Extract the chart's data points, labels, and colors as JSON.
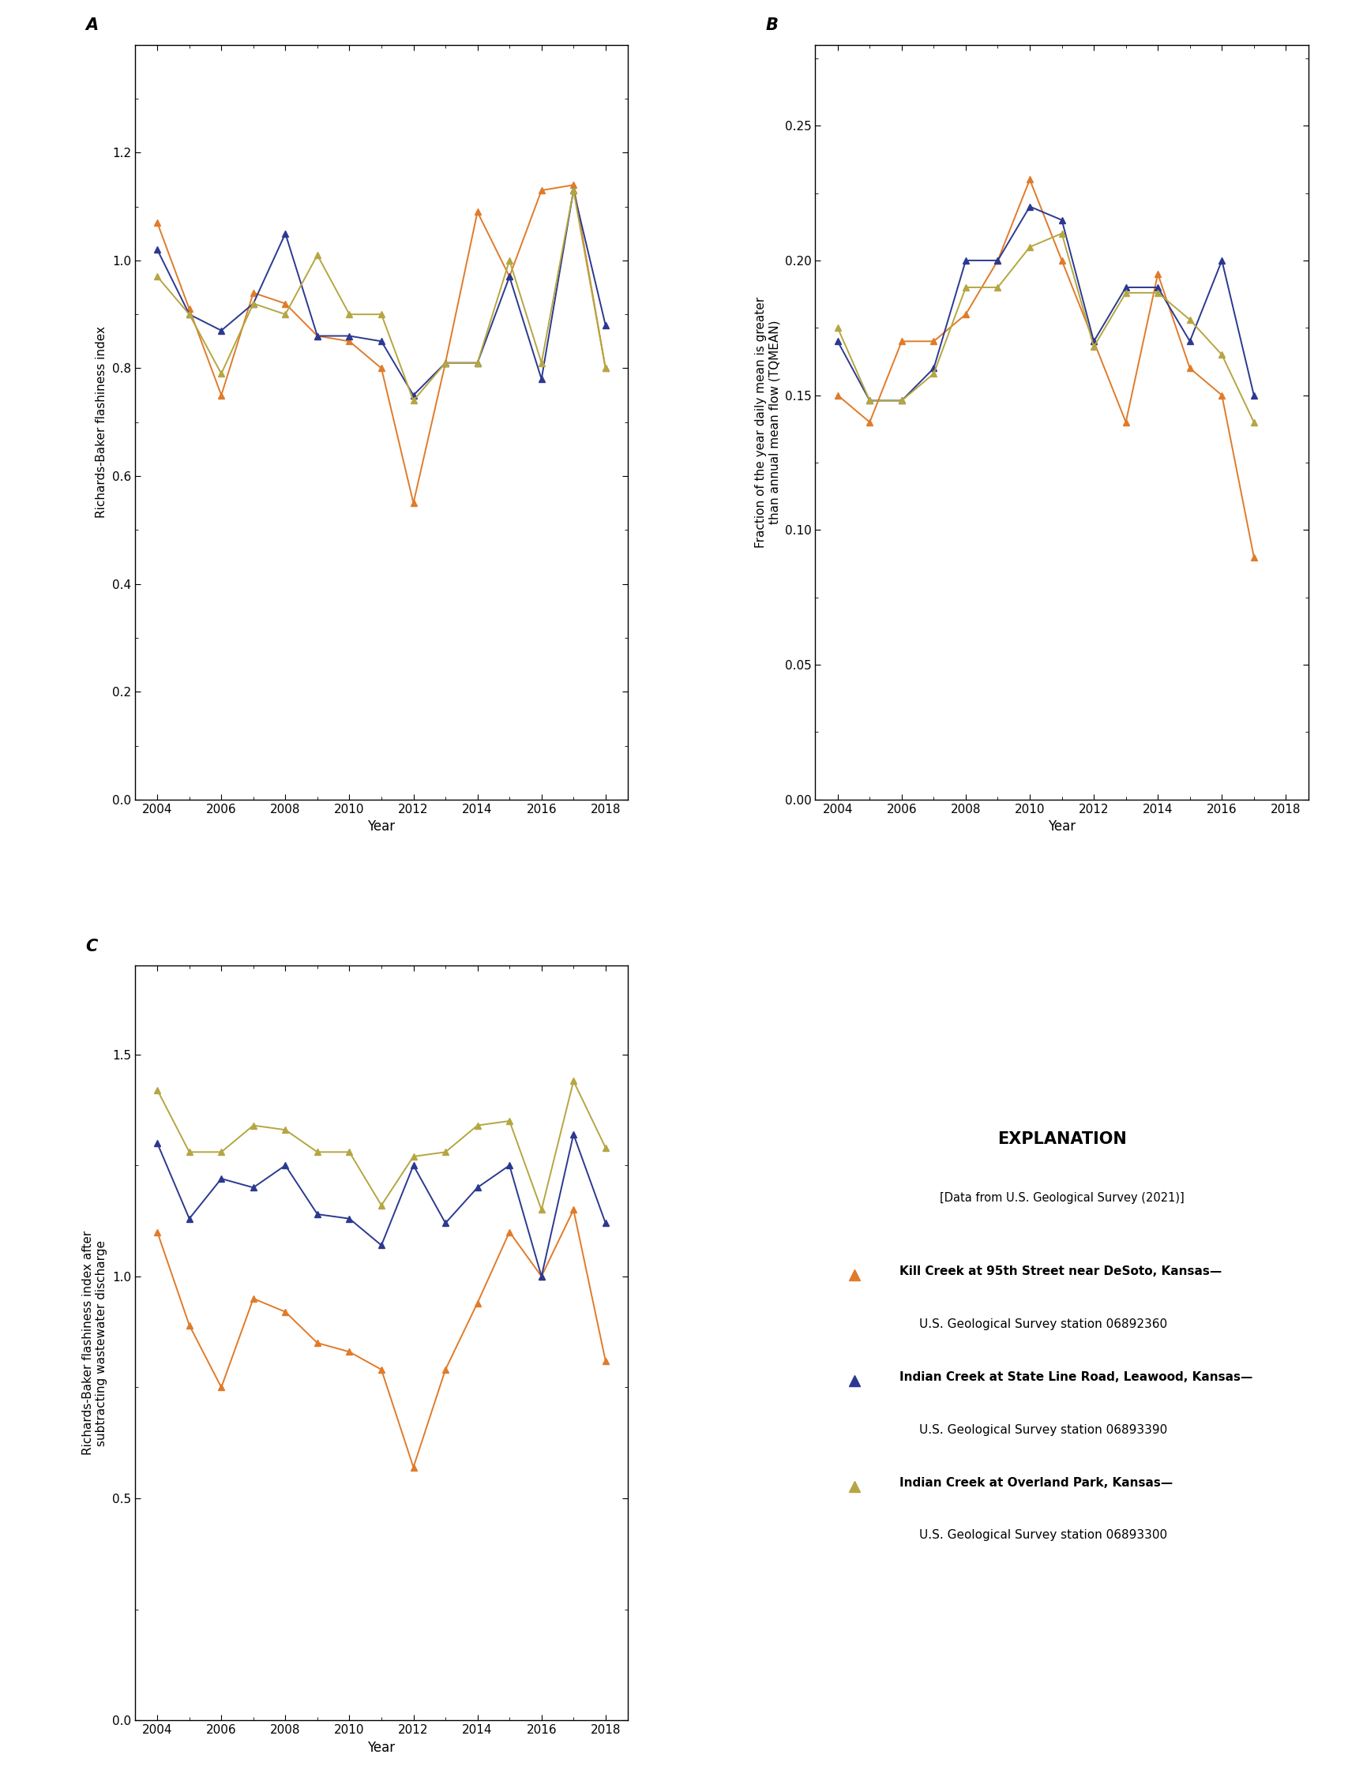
{
  "years": [
    2004,
    2005,
    2006,
    2007,
    2008,
    2009,
    2010,
    2011,
    2012,
    2013,
    2014,
    2015,
    2016,
    2017,
    2018
  ],
  "panel_A": {
    "title": "A",
    "ylabel": "Richards-Baker flashiness index",
    "ylim": [
      0,
      1.4
    ],
    "yticks": [
      0,
      0.2,
      0.4,
      0.6,
      0.8,
      1.0,
      1.2
    ],
    "kill_creek": [
      1.07,
      0.91,
      0.75,
      0.94,
      0.92,
      0.86,
      0.85,
      0.8,
      0.55,
      0.81,
      1.09,
      0.97,
      1.13,
      1.14,
      0.8
    ],
    "indian_state": [
      1.02,
      0.9,
      0.87,
      0.92,
      1.05,
      0.86,
      0.86,
      0.85,
      0.75,
      0.81,
      0.81,
      0.97,
      0.78,
      1.13,
      0.88
    ],
    "indian_op": [
      0.97,
      0.9,
      0.79,
      0.92,
      0.9,
      1.01,
      0.9,
      0.9,
      0.74,
      0.81,
      0.81,
      1.0,
      0.81,
      1.13,
      0.8
    ]
  },
  "panel_B": {
    "title": "B",
    "ylabel": "Fraction of the year daily mean is greater than annual mean flow (TQMEAN)",
    "ylim": [
      0,
      0.28
    ],
    "yticks": [
      0,
      0.05,
      0.1,
      0.15,
      0.2,
      0.25
    ],
    "kill_creek": [
      0.15,
      0.14,
      0.17,
      0.17,
      0.18,
      0.2,
      0.23,
      0.2,
      0.17,
      0.14,
      0.195,
      0.16,
      0.15,
      0.09,
      null
    ],
    "indian_state": [
      0.17,
      0.148,
      0.148,
      0.16,
      0.2,
      0.2,
      0.22,
      0.215,
      0.17,
      0.19,
      0.19,
      0.17,
      0.2,
      0.15,
      null
    ],
    "indian_op": [
      0.175,
      0.148,
      0.148,
      0.158,
      0.19,
      0.19,
      0.205,
      0.21,
      0.168,
      0.188,
      0.188,
      0.178,
      0.165,
      0.14,
      null
    ]
  },
  "panel_C": {
    "title": "C",
    "ylabel": "Richards-Baker flashiness index after subtracting wastewater discharge",
    "ylim": [
      0,
      1.7
    ],
    "yticks": [
      0,
      0.5,
      1.0,
      1.5
    ],
    "kill_creek": [
      1.1,
      0.89,
      0.75,
      0.95,
      0.92,
      0.85,
      0.83,
      0.79,
      0.57,
      0.79,
      0.94,
      1.1,
      1.0,
      1.15,
      0.81
    ],
    "indian_state": [
      1.3,
      1.13,
      1.22,
      1.2,
      1.25,
      1.14,
      1.13,
      1.07,
      1.25,
      1.12,
      1.2,
      1.25,
      1.0,
      1.32,
      1.12
    ],
    "indian_op": [
      1.42,
      1.28,
      1.28,
      1.34,
      1.33,
      1.28,
      1.28,
      1.16,
      1.27,
      1.28,
      1.34,
      1.35,
      1.15,
      1.44,
      1.29
    ]
  },
  "colors": {
    "kill_creek": "#E07B2A",
    "indian_state": "#2B3990",
    "indian_op": "#B5A642"
  },
  "marker": "^",
  "markersize": 6,
  "linewidth": 1.4,
  "legend": {
    "title": "EXPLANATION",
    "data_source": "[Data from U.S. Geological Survey (2021)]",
    "kill_creek_label1": "Kill Creek at 95th Street near DeSoto, Kansas—",
    "kill_creek_label2": "U.S. Geological Survey station 06892360",
    "indian_state_label1": "Indian Creek at State Line Road, Leawood, Kansas—",
    "indian_state_label2": "U.S. Geological Survey station 06893390",
    "indian_op_label1": "Indian Creek at Overland Park, Kansas—",
    "indian_op_label2": "U.S. Geological Survey station 06893300"
  }
}
